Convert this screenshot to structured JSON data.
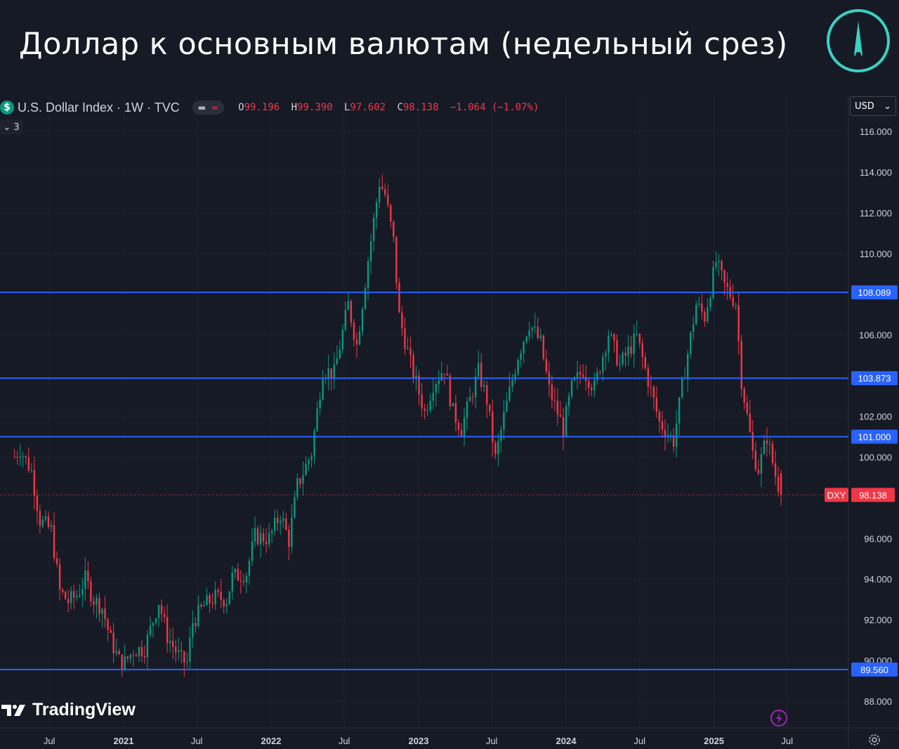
{
  "header": {
    "title": "Доллар к основным валютам (недельный срез)"
  },
  "legend": {
    "symbol_badge": "$",
    "symbol_title": "U.S. Dollar Index · 1W · TVC",
    "toggle_1": "▬",
    "toggle_2": "≈",
    "ohlc": {
      "o_label": "O",
      "o_value": "99.196",
      "h_label": "H",
      "h_value": "99.390",
      "l_label": "L",
      "l_value": "97.602",
      "c_label": "C",
      "c_value": "98.138",
      "change": "−1.064 (−1.07%)"
    },
    "indicators_count": "3"
  },
  "currency_select": {
    "value": "USD"
  },
  "branding": {
    "tradingview": "TradingView"
  },
  "icons": {
    "brand": "compass-needle-icon",
    "flash": "flash-icon",
    "settings": "settings-icon",
    "tv": "tradingview-logo-icon"
  },
  "colors": {
    "up": "#089981",
    "down": "#f23645",
    "level_line": "#2962ff",
    "background": "#161a25",
    "price_tag": "#f23645"
  },
  "chart_data": {
    "type": "candlestick",
    "symbol": "DXY",
    "interval": "1W",
    "ylim": [
      86.6,
      118.0
    ],
    "y_ticks": [
      "116.000",
      "114.000",
      "112.000",
      "110.000",
      "106.000",
      "102.000",
      "100.000",
      "96.000",
      "94.000",
      "92.000",
      "90.000",
      "88.000"
    ],
    "y_tick_values": [
      116,
      114,
      112,
      110,
      106,
      102,
      100,
      96,
      94,
      92,
      90,
      88
    ],
    "x_ticks": [
      "Jul",
      "2021",
      "Jul",
      "2022",
      "Jul",
      "2023",
      "Jul",
      "2024",
      "Jul",
      "2025",
      "Jul"
    ],
    "x_tick_dates": [
      "2020-07-01",
      "2021-01-01",
      "2021-07-01",
      "2022-01-01",
      "2022-07-01",
      "2023-01-01",
      "2023-07-01",
      "2024-01-01",
      "2024-07-01",
      "2025-01-01",
      "2025-07-01"
    ],
    "levels": [
      {
        "value": 108.089,
        "label": "108.089"
      },
      {
        "value": 103.873,
        "label": "103.873"
      },
      {
        "value": 101.0,
        "label": "101.000"
      },
      {
        "value": 89.56,
        "label": "89.560"
      }
    ],
    "last_price": {
      "value": 98.138,
      "label": "98.138",
      "symbol_tag": "DXY"
    },
    "close_path": [
      [
        "2020-04-06",
        100.0
      ],
      [
        "2020-04-20",
        100.4
      ],
      [
        "2020-05-18",
        99.3
      ],
      [
        "2020-06-08",
        96.9
      ],
      [
        "2020-07-06",
        96.4
      ],
      [
        "2020-07-27",
        93.4
      ],
      [
        "2020-08-17",
        92.9
      ],
      [
        "2020-09-07",
        93.2
      ],
      [
        "2020-09-28",
        94.0
      ],
      [
        "2020-10-19",
        93.0
      ],
      [
        "2020-11-09",
        92.6
      ],
      [
        "2020-11-30",
        91.0
      ],
      [
        "2020-12-21",
        90.0
      ],
      [
        "2021-01-04",
        89.9
      ],
      [
        "2021-01-25",
        90.5
      ],
      [
        "2021-02-22",
        90.6
      ],
      [
        "2021-03-29",
        92.9
      ],
      [
        "2021-04-19",
        91.2
      ],
      [
        "2021-05-24",
        90.0
      ],
      [
        "2021-06-07",
        89.9
      ],
      [
        "2021-06-21",
        91.9
      ],
      [
        "2021-07-19",
        92.7
      ],
      [
        "2021-08-16",
        93.1
      ],
      [
        "2021-09-13",
        93.0
      ],
      [
        "2021-09-27",
        94.1
      ],
      [
        "2021-11-01",
        94.3
      ],
      [
        "2021-11-22",
        96.1
      ],
      [
        "2021-12-27",
        96.0
      ],
      [
        "2022-01-24",
        97.2
      ],
      [
        "2022-02-14",
        95.9
      ],
      [
        "2022-03-07",
        98.6
      ],
      [
        "2022-04-11",
        100.2
      ],
      [
        "2022-05-09",
        104.3
      ],
      [
        "2022-06-06",
        104.1
      ],
      [
        "2022-07-11",
        107.5
      ],
      [
        "2022-08-01",
        105.5
      ],
      [
        "2022-08-29",
        109.7
      ],
      [
        "2022-09-26",
        113.5
      ],
      [
        "2022-10-10",
        112.9
      ],
      [
        "2022-10-31",
        110.6
      ],
      [
        "2022-11-14",
        106.9
      ],
      [
        "2022-12-12",
        104.6
      ],
      [
        "2023-01-16",
        102.2
      ],
      [
        "2023-02-06",
        103.6
      ],
      [
        "2023-03-06",
        104.4
      ],
      [
        "2023-03-27",
        102.2
      ],
      [
        "2023-04-17",
        101.4
      ],
      [
        "2023-05-29",
        104.2
      ],
      [
        "2023-06-19",
        102.8
      ],
      [
        "2023-07-10",
        99.9
      ],
      [
        "2023-07-31",
        102.0
      ],
      [
        "2023-09-04",
        105.0
      ],
      [
        "2023-10-02",
        106.6
      ],
      [
        "2023-10-30",
        105.6
      ],
      [
        "2023-11-20",
        103.3
      ],
      [
        "2023-12-25",
        101.4
      ],
      [
        "2024-01-15",
        103.4
      ],
      [
        "2024-02-12",
        104.3
      ],
      [
        "2024-03-11",
        103.4
      ],
      [
        "2024-04-15",
        106.1
      ],
      [
        "2024-05-13",
        104.5
      ],
      [
        "2024-06-24",
        105.9
      ],
      [
        "2024-07-15",
        104.3
      ],
      [
        "2024-08-19",
        101.7
      ],
      [
        "2024-09-23",
        100.8
      ],
      [
        "2024-10-21",
        104.3
      ],
      [
        "2024-11-18",
        107.5
      ],
      [
        "2024-12-09",
        106.9
      ],
      [
        "2025-01-06",
        109.6
      ],
      [
        "2025-01-27",
        108.4
      ],
      [
        "2025-02-24",
        107.6
      ],
      [
        "2025-03-10",
        103.8
      ],
      [
        "2025-04-07",
        100.2
      ],
      [
        "2025-04-21",
        99.4
      ],
      [
        "2025-05-12",
        101.0
      ],
      [
        "2025-06-02",
        99.1
      ],
      [
        "2025-06-16",
        98.138
      ]
    ]
  }
}
